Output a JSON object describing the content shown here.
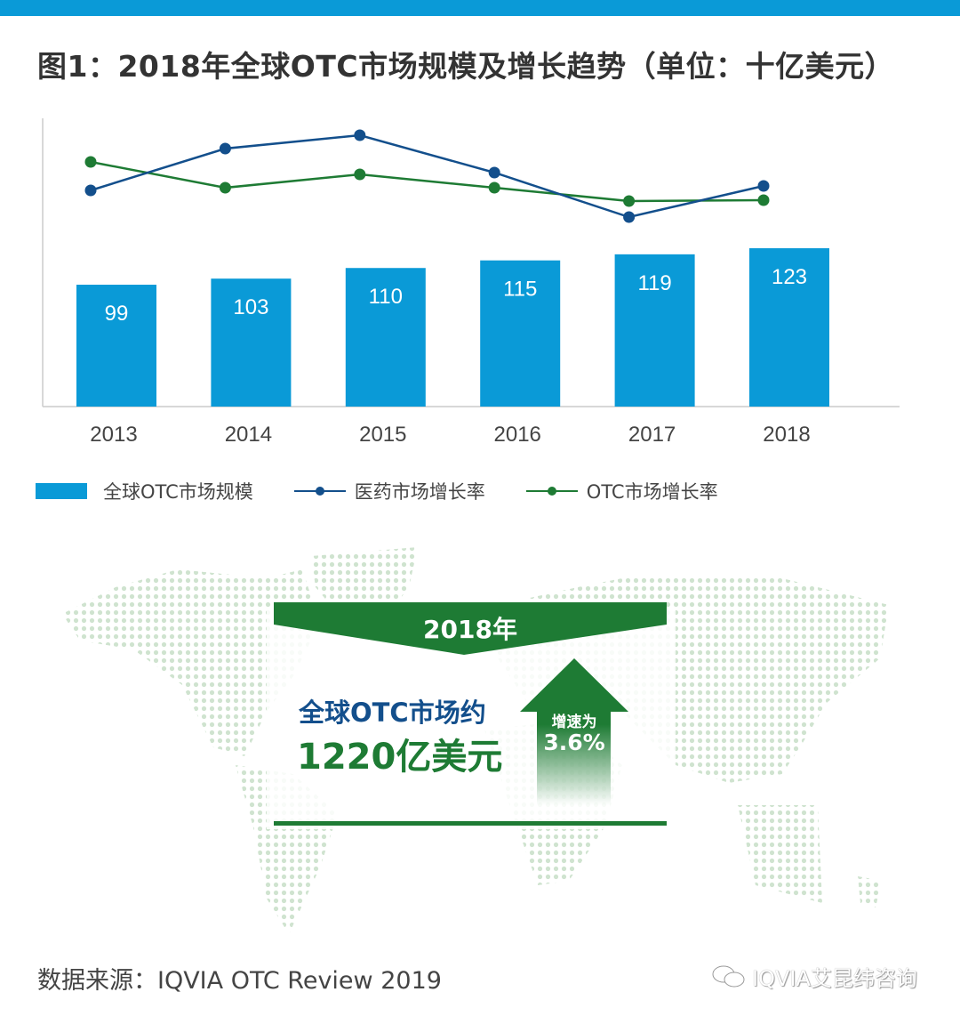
{
  "title": "图1：2018年全球OTC市场规模及增长趋势（单位：十亿美元）",
  "colors": {
    "bar": "#0a9ad7",
    "pharma_line": "#134f8c",
    "otc_line": "#1e7b34",
    "map_dot": "#cfe3cf",
    "topbar": "#0a9ad7"
  },
  "chart_data": {
    "type": "bar",
    "title": "图1：2018年全球OTC市场规模及增长趋势（单位：十亿美元）",
    "categories": [
      "2013",
      "2014",
      "2015",
      "2016",
      "2017",
      "2018"
    ],
    "series": [
      {
        "name": "全球OTC市场规模",
        "type": "bar",
        "values": [
          99,
          103,
          110,
          115,
          119,
          123
        ],
        "labels": [
          "99",
          "103",
          "110",
          "115",
          "119",
          "123"
        ]
      },
      {
        "name": "医药市场增长率",
        "type": "line",
        "unit": "% (estimated, unlabeled)",
        "values": [
          4.15,
          6.5,
          7.25,
          5.15,
          2.65,
          4.4
        ]
      },
      {
        "name": "OTC市场增长率",
        "type": "line",
        "unit": "% (estimated, unlabeled)",
        "values": [
          5.75,
          4.3,
          5.05,
          4.3,
          3.55,
          3.6
        ]
      }
    ],
    "xlabel": "",
    "ylabel": "",
    "grid": false,
    "legend": "bottom"
  },
  "legend": [
    "全球OTC市场规模",
    "医药市场增长率",
    "OTC市场增长率"
  ],
  "infographic": {
    "year_banner": "2018年",
    "headline_1": "全球OTC市场约",
    "headline_2": "1220亿美元",
    "growth_label": "增速为",
    "growth_value": "3.6%"
  },
  "source": "数据来源：IQVIA OTC Review 2019",
  "watermark": "IQVIA艾昆纬咨询"
}
